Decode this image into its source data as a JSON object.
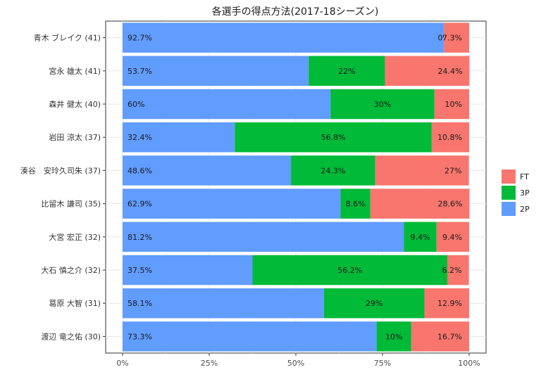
{
  "chart_data": {
    "type": "bar",
    "orientation": "horizontal",
    "stacked": "percent",
    "title": "各選手の得点方法(2017-18シーズン)",
    "xlabel": "",
    "ylabel": "",
    "xlim": [
      0,
      100
    ],
    "x_ticks": [
      "0%",
      "25%",
      "50%",
      "75%",
      "100%"
    ],
    "grid": true,
    "legend_position": "right",
    "categories": [
      "青木 ブレイク (41)",
      "宮永 雄太 (41)",
      "森井 健太 (40)",
      "岩田 涼太 (37)",
      "湊谷　安玲久司朱 (37)",
      "比留木 謙司 (35)",
      "大宮 宏正 (32)",
      "大石 慎之介 (32)",
      "葛原 大智 (31)",
      "渡辺 竜之佑 (30)"
    ],
    "series": [
      {
        "name": "2P",
        "color": "#619CFF",
        "values": [
          92.7,
          53.7,
          60,
          32.4,
          48.6,
          62.9,
          81.2,
          37.5,
          58.1,
          73.3
        ],
        "labels": [
          "92.7%",
          "53.7%",
          "60%",
          "32.4%",
          "48.6%",
          "62.9%",
          "81.2%",
          "37.5%",
          "58.1%",
          "73.3%"
        ]
      },
      {
        "name": "3P",
        "color": "#00BA38",
        "values": [
          0,
          22,
          30,
          56.8,
          24.3,
          8.6,
          9.4,
          56.2,
          29,
          10
        ],
        "labels": [
          "0%",
          "22%",
          "30%",
          "56.8%",
          "24.3%",
          "8.6%",
          "9.4%",
          "56.2%",
          "29%",
          "10%"
        ]
      },
      {
        "name": "FT",
        "color": "#F8766D",
        "values": [
          7.3,
          24.4,
          10,
          10.8,
          27,
          28.6,
          9.4,
          6.2,
          12.9,
          16.7
        ],
        "labels": [
          "7.3%",
          "24.4%",
          "10%",
          "10.8%",
          "27%",
          "28.6%",
          "9.4%",
          "6.2%",
          "12.9%",
          "16.7%"
        ]
      }
    ],
    "legend_order": [
      "FT",
      "3P",
      "2P"
    ]
  }
}
